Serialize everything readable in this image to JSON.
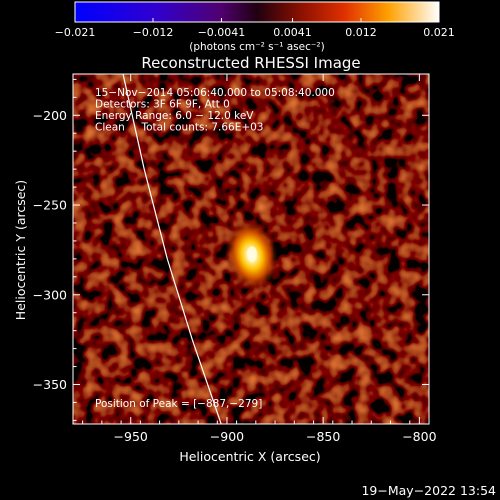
{
  "chart_data": {
    "type": "heatmap",
    "title": "Reconstructed RHESSI Image",
    "xlabel": "Heliocentric X (arcsec)",
    "ylabel": "Heliocentric Y (arcsec)",
    "xlim": [
      -980,
      -795
    ],
    "ylim": [
      -372,
      -177
    ],
    "x_ticks": [
      -950,
      -900,
      -850,
      -800
    ],
    "x_tick_labels": [
      "−950",
      "−900",
      "−850",
      "−800"
    ],
    "y_ticks": [
      -200,
      -250,
      -300,
      -350
    ],
    "y_tick_labels": [
      "−200",
      "−250",
      "−300",
      "−350"
    ],
    "colorbar": {
      "range": [
        -0.021,
        0.021
      ],
      "ticks": [
        -0.021,
        -0.012,
        -0.0041,
        0.0041,
        0.012,
        0.021
      ],
      "tick_labels": [
        "−0.021",
        "−0.012",
        "−0.0041",
        "0.0041",
        "0.012",
        "0.021"
      ],
      "unit_label": "(photons cm⁻² s⁻¹ asec⁻²)",
      "colormap": "blue-purple-red-yellow-white"
    },
    "info_lines": [
      "15−Nov−2014 05:06:40.000 to 05:08:40.000",
      "Detectors: 3F 6F 9F, Att 0",
      "Energy Range: 6.0 − 12.0 keV",
      "Clean     Total counts: 7.66E+03"
    ],
    "peak_label": "Position of Peak = [−887,−279]",
    "peak": {
      "x": -887,
      "y": -279
    },
    "limb_curve": [
      {
        "x": -954,
        "y": -177
      },
      {
        "x": -943,
        "y": -230
      },
      {
        "x": -931,
        "y": -280
      },
      {
        "x": -918,
        "y": -325
      },
      {
        "x": -903,
        "y": -372
      }
    ],
    "colors": {
      "limb": "#ffffff",
      "axes": "#ffffff",
      "background": "#000000"
    }
  },
  "footer": {
    "timestamp": "19−May−2022 13:54"
  }
}
